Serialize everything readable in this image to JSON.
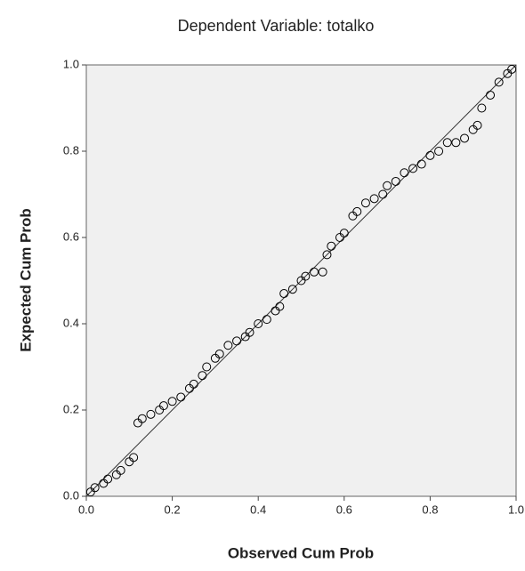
{
  "chart_data": {
    "type": "scatter",
    "title": "Dependent Variable: totalko",
    "x_label": "Observed Cum Prob",
    "y_label": "Expected Cum Prob",
    "x": [
      0.01,
      0.02,
      0.04,
      0.05,
      0.07,
      0.08,
      0.1,
      0.11,
      0.12,
      0.13,
      0.15,
      0.17,
      0.18,
      0.2,
      0.22,
      0.24,
      0.25,
      0.27,
      0.28,
      0.3,
      0.31,
      0.33,
      0.35,
      0.37,
      0.38,
      0.4,
      0.42,
      0.44,
      0.45,
      0.46,
      0.48,
      0.5,
      0.51,
      0.53,
      0.55,
      0.56,
      0.57,
      0.59,
      0.6,
      0.62,
      0.63,
      0.65,
      0.67,
      0.69,
      0.7,
      0.72,
      0.74,
      0.76,
      0.78,
      0.8,
      0.82,
      0.84,
      0.86,
      0.88,
      0.9,
      0.91,
      0.92,
      0.94,
      0.96,
      0.98,
      0.99
    ],
    "values": [
      0.01,
      0.02,
      0.03,
      0.04,
      0.05,
      0.06,
      0.08,
      0.09,
      0.17,
      0.18,
      0.19,
      0.2,
      0.21,
      0.22,
      0.23,
      0.25,
      0.26,
      0.28,
      0.3,
      0.32,
      0.33,
      0.35,
      0.36,
      0.37,
      0.38,
      0.4,
      0.41,
      0.43,
      0.44,
      0.47,
      0.48,
      0.5,
      0.51,
      0.52,
      0.52,
      0.56,
      0.58,
      0.6,
      0.61,
      0.65,
      0.66,
      0.68,
      0.69,
      0.7,
      0.72,
      0.73,
      0.75,
      0.76,
      0.77,
      0.79,
      0.8,
      0.82,
      0.82,
      0.83,
      0.85,
      0.86,
      0.9,
      0.93,
      0.96,
      0.98,
      0.99
    ],
    "color": "#000000",
    "diagonal": true,
    "xlim": [
      0,
      1
    ],
    "ylim": [
      0,
      1
    ],
    "xticks": [
      {
        "value": 0,
        "label": "0.0"
      },
      {
        "value": 0.2,
        "label": "0.2"
      },
      {
        "value": 0.4,
        "label": "0.4"
      },
      {
        "value": 0.6,
        "label": "0.6"
      },
      {
        "value": 0.8,
        "label": "0.8"
      },
      {
        "value": 1,
        "label": "1.0"
      }
    ],
    "yticks": [
      {
        "value": 0,
        "label": "0.0"
      },
      {
        "value": 0.2,
        "label": "0.2"
      },
      {
        "value": 0.4,
        "label": "0.4"
      },
      {
        "value": 0.6,
        "label": "0.6"
      },
      {
        "value": 0.8,
        "label": "0.8"
      },
      {
        "value": 1,
        "label": "1.0"
      }
    ]
  }
}
